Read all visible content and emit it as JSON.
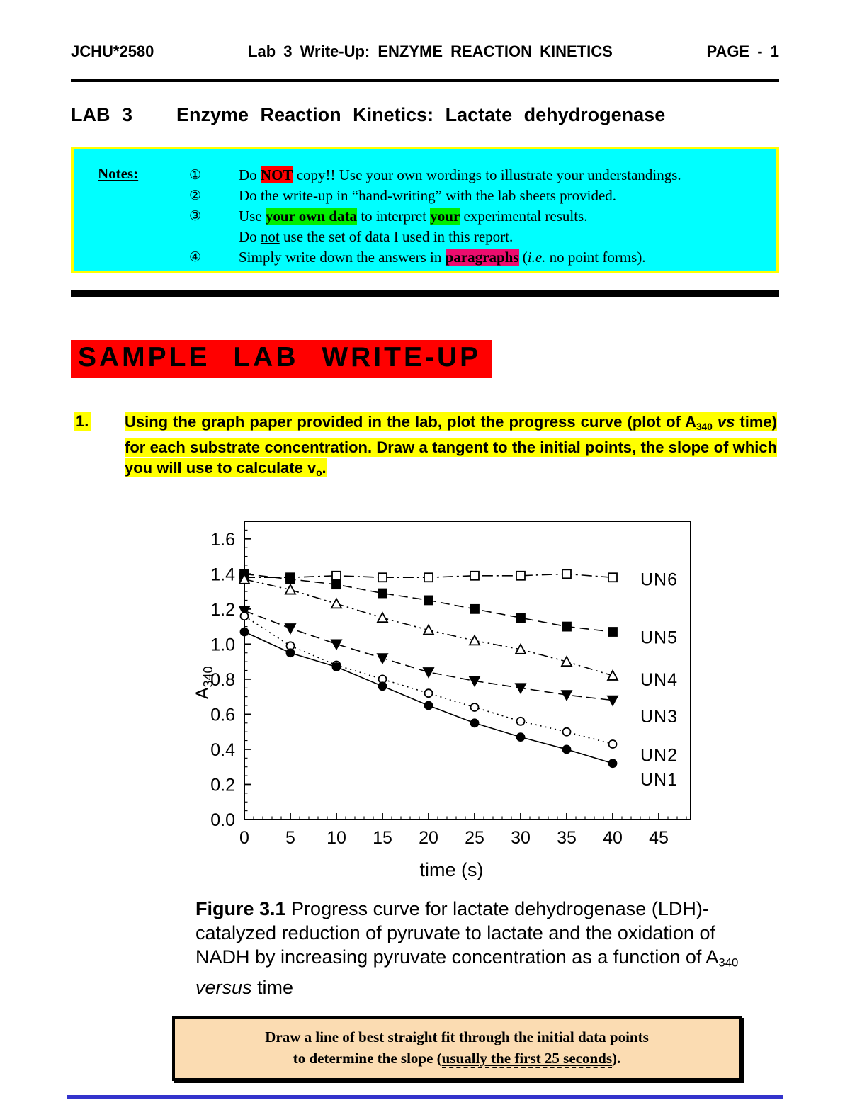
{
  "colors": {
    "cyan": "#00FFFF",
    "yellow": "#FFFF00",
    "red": "#FF0000",
    "green": "#00EE00",
    "pink": "#EC0D6E",
    "peach": "#FBDCB2",
    "blueline": "#3333CC"
  },
  "header": {
    "course": "JCHU*2580",
    "center": "Lab 3  Write-Up:  ENZYME  REACTION  KINETICS",
    "page": "PAGE - 1"
  },
  "lab_title": {
    "lab": "LAB 3",
    "text": "Enzyme  Reaction  Kinetics:  Lactate  dehydrogenase"
  },
  "notes_box": {
    "label": "Notes:",
    "rows": [
      {
        "num": "①",
        "segs": [
          {
            "t": "Do "
          },
          {
            "t": "NOT",
            "s": "red"
          },
          {
            "t": " copy!!  Use your own wordings to illustrate your understandings."
          }
        ]
      },
      {
        "num": "②",
        "segs": [
          {
            "t": "Do the write-up in “hand-writing” with the lab sheets provided."
          }
        ]
      },
      {
        "num": "③",
        "segs": [
          {
            "t": "Use "
          },
          {
            "t": "your own data",
            "s": "green"
          },
          {
            "t": " to interpret "
          },
          {
            "t": "your",
            "s": "green"
          },
          {
            "t": " experimental results."
          }
        ]
      },
      {
        "num": "",
        "segs": [
          {
            "t": "Do "
          },
          {
            "t": "not",
            "s": "ul"
          },
          {
            "t": " use the set of data I used in this report."
          }
        ]
      },
      {
        "num": "④",
        "segs": [
          {
            "t": "Simply write down the answers in "
          },
          {
            "t": "paragraphs",
            "s": "pink"
          },
          {
            "t": " ("
          },
          {
            "t": "i.e.",
            "s": "it"
          },
          {
            "t": " no point forms)."
          }
        ]
      }
    ]
  },
  "sample_banner": "SAMPLE  LAB  WRITE-UP",
  "question1": {
    "number": "1.",
    "segs": [
      {
        "t": "Using the graph paper provided in the lab, plot the progress curve (plot of A"
      },
      {
        "t": "340",
        "s": "sub"
      },
      {
        "t": " "
      },
      {
        "t": "vs",
        "s": "it"
      },
      {
        "t": " time) for each substrate concentration.  Draw a tangent to the initial points, the slope of which you will use to calculate v"
      },
      {
        "t": "o",
        "s": "sub"
      },
      {
        "t": "."
      }
    ]
  },
  "chart_data": {
    "type": "line",
    "x": [
      0,
      5,
      10,
      15,
      20,
      25,
      30,
      35,
      40
    ],
    "xlabel": "time  (s)",
    "ylabel": "A",
    "ylabel_sub": "340",
    "xlim": [
      0,
      48.5
    ],
    "ylim": [
      0,
      1.7
    ],
    "xticks": [
      0,
      5,
      10,
      15,
      20,
      25,
      30,
      35,
      40,
      45
    ],
    "yticks": [
      0.0,
      0.2,
      0.4,
      0.6,
      0.8,
      1.0,
      1.2,
      1.4,
      1.6
    ],
    "grid": false,
    "legend_position": "right-inside",
    "series": [
      {
        "name": "UN6",
        "marker": "square-open",
        "line": "dash-dot",
        "label_y": 1.37,
        "values": [
          1.38,
          1.38,
          1.39,
          1.38,
          1.38,
          1.39,
          1.39,
          1.4,
          1.38
        ]
      },
      {
        "name": "UN5",
        "marker": "square-filled",
        "line": "dash",
        "label_y": 1.04,
        "values": [
          1.4,
          1.37,
          1.34,
          1.29,
          1.25,
          1.2,
          1.15,
          1.1,
          1.07
        ]
      },
      {
        "name": "UN4",
        "marker": "triangle-up-open",
        "line": "dash-dot-dot",
        "label_y": 0.8,
        "values": [
          1.37,
          1.31,
          1.23,
          1.15,
          1.08,
          1.02,
          0.97,
          0.9,
          0.82
        ]
      },
      {
        "name": "UN3",
        "marker": "triangle-down-filled",
        "line": "dash",
        "label_y": 0.59,
        "values": [
          1.19,
          1.09,
          1.0,
          0.92,
          0.84,
          0.79,
          0.75,
          0.71,
          0.68
        ]
      },
      {
        "name": "UN2",
        "marker": "circle-open",
        "line": "dotted",
        "label_y": 0.37,
        "values": [
          1.16,
          0.99,
          0.88,
          0.8,
          0.72,
          0.64,
          0.56,
          0.5,
          0.43
        ]
      },
      {
        "name": "UN1",
        "marker": "circle-filled",
        "line": "solid",
        "label_y": 0.23,
        "values": [
          1.07,
          0.95,
          0.87,
          0.76,
          0.65,
          0.55,
          0.47,
          0.4,
          0.32
        ]
      }
    ]
  },
  "caption": {
    "segs": [
      {
        "t": "Figure 3.1",
        "s": "bd"
      },
      {
        "t": "  Progress curve for lactate dehydrogenase (LDH)-catalyzed reduction of pyruvate to lactate and the oxidation of NADH by increasing pyruvate concentration as a function of A"
      },
      {
        "t": "340",
        "s": "sub"
      },
      {
        "t": " "
      },
      {
        "t": "versus",
        "s": "it"
      },
      {
        "t": " time"
      }
    ]
  },
  "instruction_box": {
    "line1": [
      {
        "t": "Draw a line of best straight fit through the initial data points"
      }
    ],
    "line2": [
      {
        "t": "to determine the slope ("
      },
      {
        "t": "usually the first 25 seconds",
        "s": "ul-dash"
      },
      {
        "t": ")."
      }
    ]
  }
}
